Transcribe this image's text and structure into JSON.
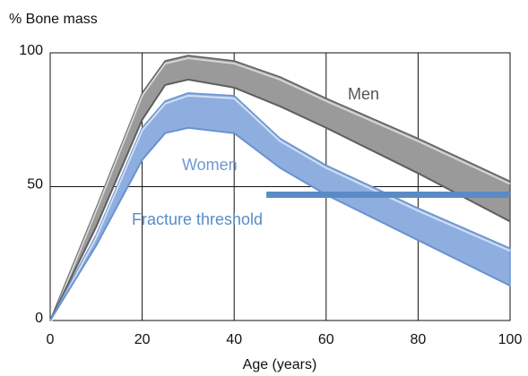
{
  "chart_data": {
    "type": "band",
    "y_label": "% Bone mass",
    "x_label": "Age (years)",
    "x": [
      0,
      10,
      20,
      25,
      30,
      40,
      50,
      60,
      80,
      100
    ],
    "series": [
      {
        "name": "Men",
        "color": "#9a9a9a",
        "edge": "#5f5f5f",
        "label_color": "#555555",
        "values": [
          0,
          42,
          85,
          97,
          99,
          97,
          91,
          83,
          68,
          52
        ],
        "lower": [
          0,
          35,
          75,
          88,
          90,
          87,
          80,
          72,
          55,
          37
        ]
      },
      {
        "name": "Women",
        "color": "#8eaee0",
        "edge": "#6a93cf",
        "label_color": "#6f98d6",
        "values": [
          0,
          32,
          72,
          82,
          85,
          84,
          68,
          58,
          42,
          27
        ],
        "lower": [
          0,
          28,
          60,
          70,
          72,
          70,
          57,
          47,
          30,
          13
        ]
      }
    ],
    "threshold": {
      "name": "Fracture threshold",
      "color": "#5b8bc6",
      "x": [
        47,
        100
      ],
      "value": 47
    },
    "xlim": [
      0,
      100
    ],
    "xticks": [
      0,
      20,
      40,
      60,
      80,
      100
    ],
    "ylim": [
      0,
      100
    ],
    "yticks": [
      0,
      50,
      100
    ],
    "grid": true
  }
}
